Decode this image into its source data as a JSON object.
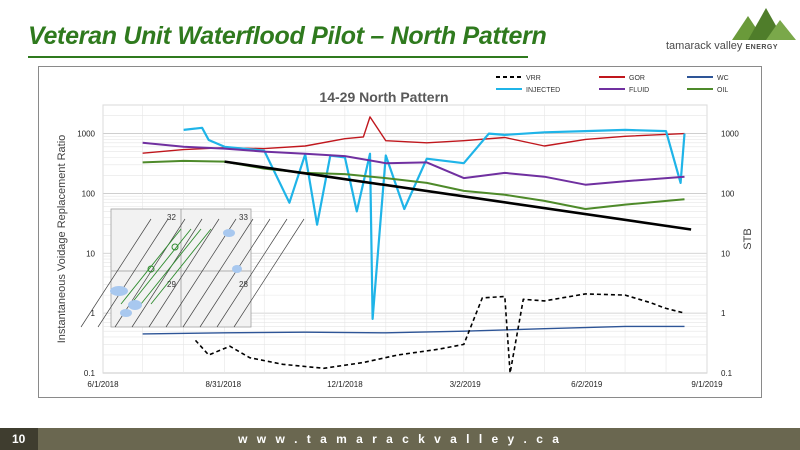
{
  "slide": {
    "title": "Veteran Unit Waterflood Pilot – North Pattern",
    "logo_name": "tamarack valley",
    "logo_suffix": "ENERGY",
    "page_number": "10",
    "website": "w w w . t a m a r a c k v a l l e y . c a"
  },
  "colors": {
    "title_green": "#2f7a1e",
    "footer": "#6a6750",
    "vrr": "#000000",
    "injected": "#1fb4e8",
    "gor": "#c0171d",
    "fluid": "#7030a0",
    "wc": "#2e5597",
    "oil": "#4e8a2a",
    "trend": "#000000"
  },
  "chart_data": {
    "type": "line",
    "title": "14-29 North Pattern",
    "ylabel_left": "Instantaneous Voidage Replacement Ratio",
    "ylabel_right": "STB",
    "y_scale": "log",
    "ylim": [
      0.1,
      3000
    ],
    "y_ticks": [
      "0.1",
      "1",
      "10",
      "100",
      "1000"
    ],
    "x_ticks": [
      "6/1/2018",
      "8/31/2018",
      "12/1/2018",
      "3/2/2019",
      "6/2/2019",
      "9/1/2019"
    ],
    "grid": true,
    "legend_position": "top-right",
    "legend": [
      "VRR",
      "INJECTED",
      "GOR",
      "FLUID",
      "WC",
      "OIL"
    ],
    "series": [
      {
        "name": "GOR",
        "color_key": "gor",
        "dash": false,
        "x": [
          "2018-07-01",
          "2018-08-01",
          "2018-09-01",
          "2018-10-01",
          "2018-11-01",
          "2018-12-01",
          "2018-12-15",
          "2018-12-20",
          "2019-01-01",
          "2019-02-01",
          "2019-03-01",
          "2019-04-01",
          "2019-05-01",
          "2019-06-01",
          "2019-07-01",
          "2019-08-15"
        ],
        "y": [
          470,
          540,
          580,
          560,
          620,
          820,
          880,
          1900,
          760,
          700,
          760,
          860,
          620,
          800,
          900,
          1000
        ]
      },
      {
        "name": "INJECTED",
        "color_key": "injected",
        "dash": false,
        "x": [
          "2018-08-01",
          "2018-08-15",
          "2018-08-20",
          "2018-09-01",
          "2018-10-01",
          "2018-10-20",
          "2018-11-01",
          "2018-11-10",
          "2018-11-20",
          "2018-12-01",
          "2018-12-10",
          "2018-12-20",
          "2018-12-22",
          "2019-01-01",
          "2019-01-15",
          "2019-02-01",
          "2019-03-01",
          "2019-03-20",
          "2019-04-01",
          "2019-05-01",
          "2019-06-01",
          "2019-07-01",
          "2019-08-01",
          "2019-08-12",
          "2019-08-15"
        ],
        "y": [
          1150,
          1250,
          780,
          600,
          520,
          70,
          450,
          30,
          430,
          400,
          50,
          460,
          0.8,
          430,
          55,
          380,
          320,
          1000,
          950,
          1050,
          1100,
          1150,
          1100,
          150,
          1000
        ]
      },
      {
        "name": "FLUID",
        "color_key": "fluid",
        "dash": false,
        "x": [
          "2018-07-01",
          "2018-08-01",
          "2018-09-01",
          "2018-10-01",
          "2018-11-01",
          "2018-12-01",
          "2019-01-01",
          "2019-02-01",
          "2019-03-01",
          "2019-04-01",
          "2019-05-01",
          "2019-06-01",
          "2019-07-01",
          "2019-08-15"
        ],
        "y": [
          700,
          600,
          560,
          500,
          460,
          420,
          320,
          330,
          180,
          220,
          190,
          140,
          160,
          190
        ]
      },
      {
        "name": "OIL",
        "color_key": "oil",
        "dash": false,
        "x": [
          "2018-07-01",
          "2018-08-01",
          "2018-09-01",
          "2018-10-01",
          "2018-11-01",
          "2018-12-01",
          "2019-01-01",
          "2019-02-01",
          "2019-03-01",
          "2019-04-01",
          "2019-05-01",
          "2019-06-01",
          "2019-07-01",
          "2019-08-15"
        ],
        "y": [
          330,
          350,
          340,
          260,
          220,
          210,
          180,
          150,
          110,
          95,
          75,
          55,
          65,
          80
        ]
      },
      {
        "name": "WC",
        "color_key": "wc",
        "dash": false,
        "x": [
          "2018-07-01",
          "2018-09-01",
          "2018-11-01",
          "2019-01-01",
          "2019-03-01",
          "2019-05-01",
          "2019-07-01",
          "2019-08-15"
        ],
        "y": [
          0.45,
          0.47,
          0.48,
          0.47,
          0.5,
          0.55,
          0.6,
          0.6
        ]
      },
      {
        "name": "VRR",
        "color_key": "vrr",
        "dash": true,
        "x": [
          "2018-08-10",
          "2018-08-20",
          "2018-09-05",
          "2018-09-20",
          "2018-10-15",
          "2018-11-15",
          "2018-12-15",
          "2019-01-10",
          "2019-02-10",
          "2019-03-01",
          "2019-03-15",
          "2019-04-01",
          "2019-04-05",
          "2019-04-15",
          "2019-05-01",
          "2019-06-01",
          "2019-07-01",
          "2019-07-20",
          "2019-08-01",
          "2019-08-15"
        ],
        "y": [
          0.35,
          0.2,
          0.28,
          0.18,
          0.14,
          0.12,
          0.15,
          0.2,
          0.25,
          0.3,
          1.8,
          1.9,
          0.1,
          1.7,
          1.6,
          2.1,
          2.0,
          1.5,
          1.2,
          1.0
        ]
      },
      {
        "name": "TREND",
        "color_key": "trend",
        "dash": false,
        "x": [
          "2018-09-01",
          "2019-08-20"
        ],
        "y": [
          340,
          25
        ]
      }
    ],
    "inset": {
      "labels": [
        "32",
        "33",
        "29",
        "28"
      ]
    }
  }
}
